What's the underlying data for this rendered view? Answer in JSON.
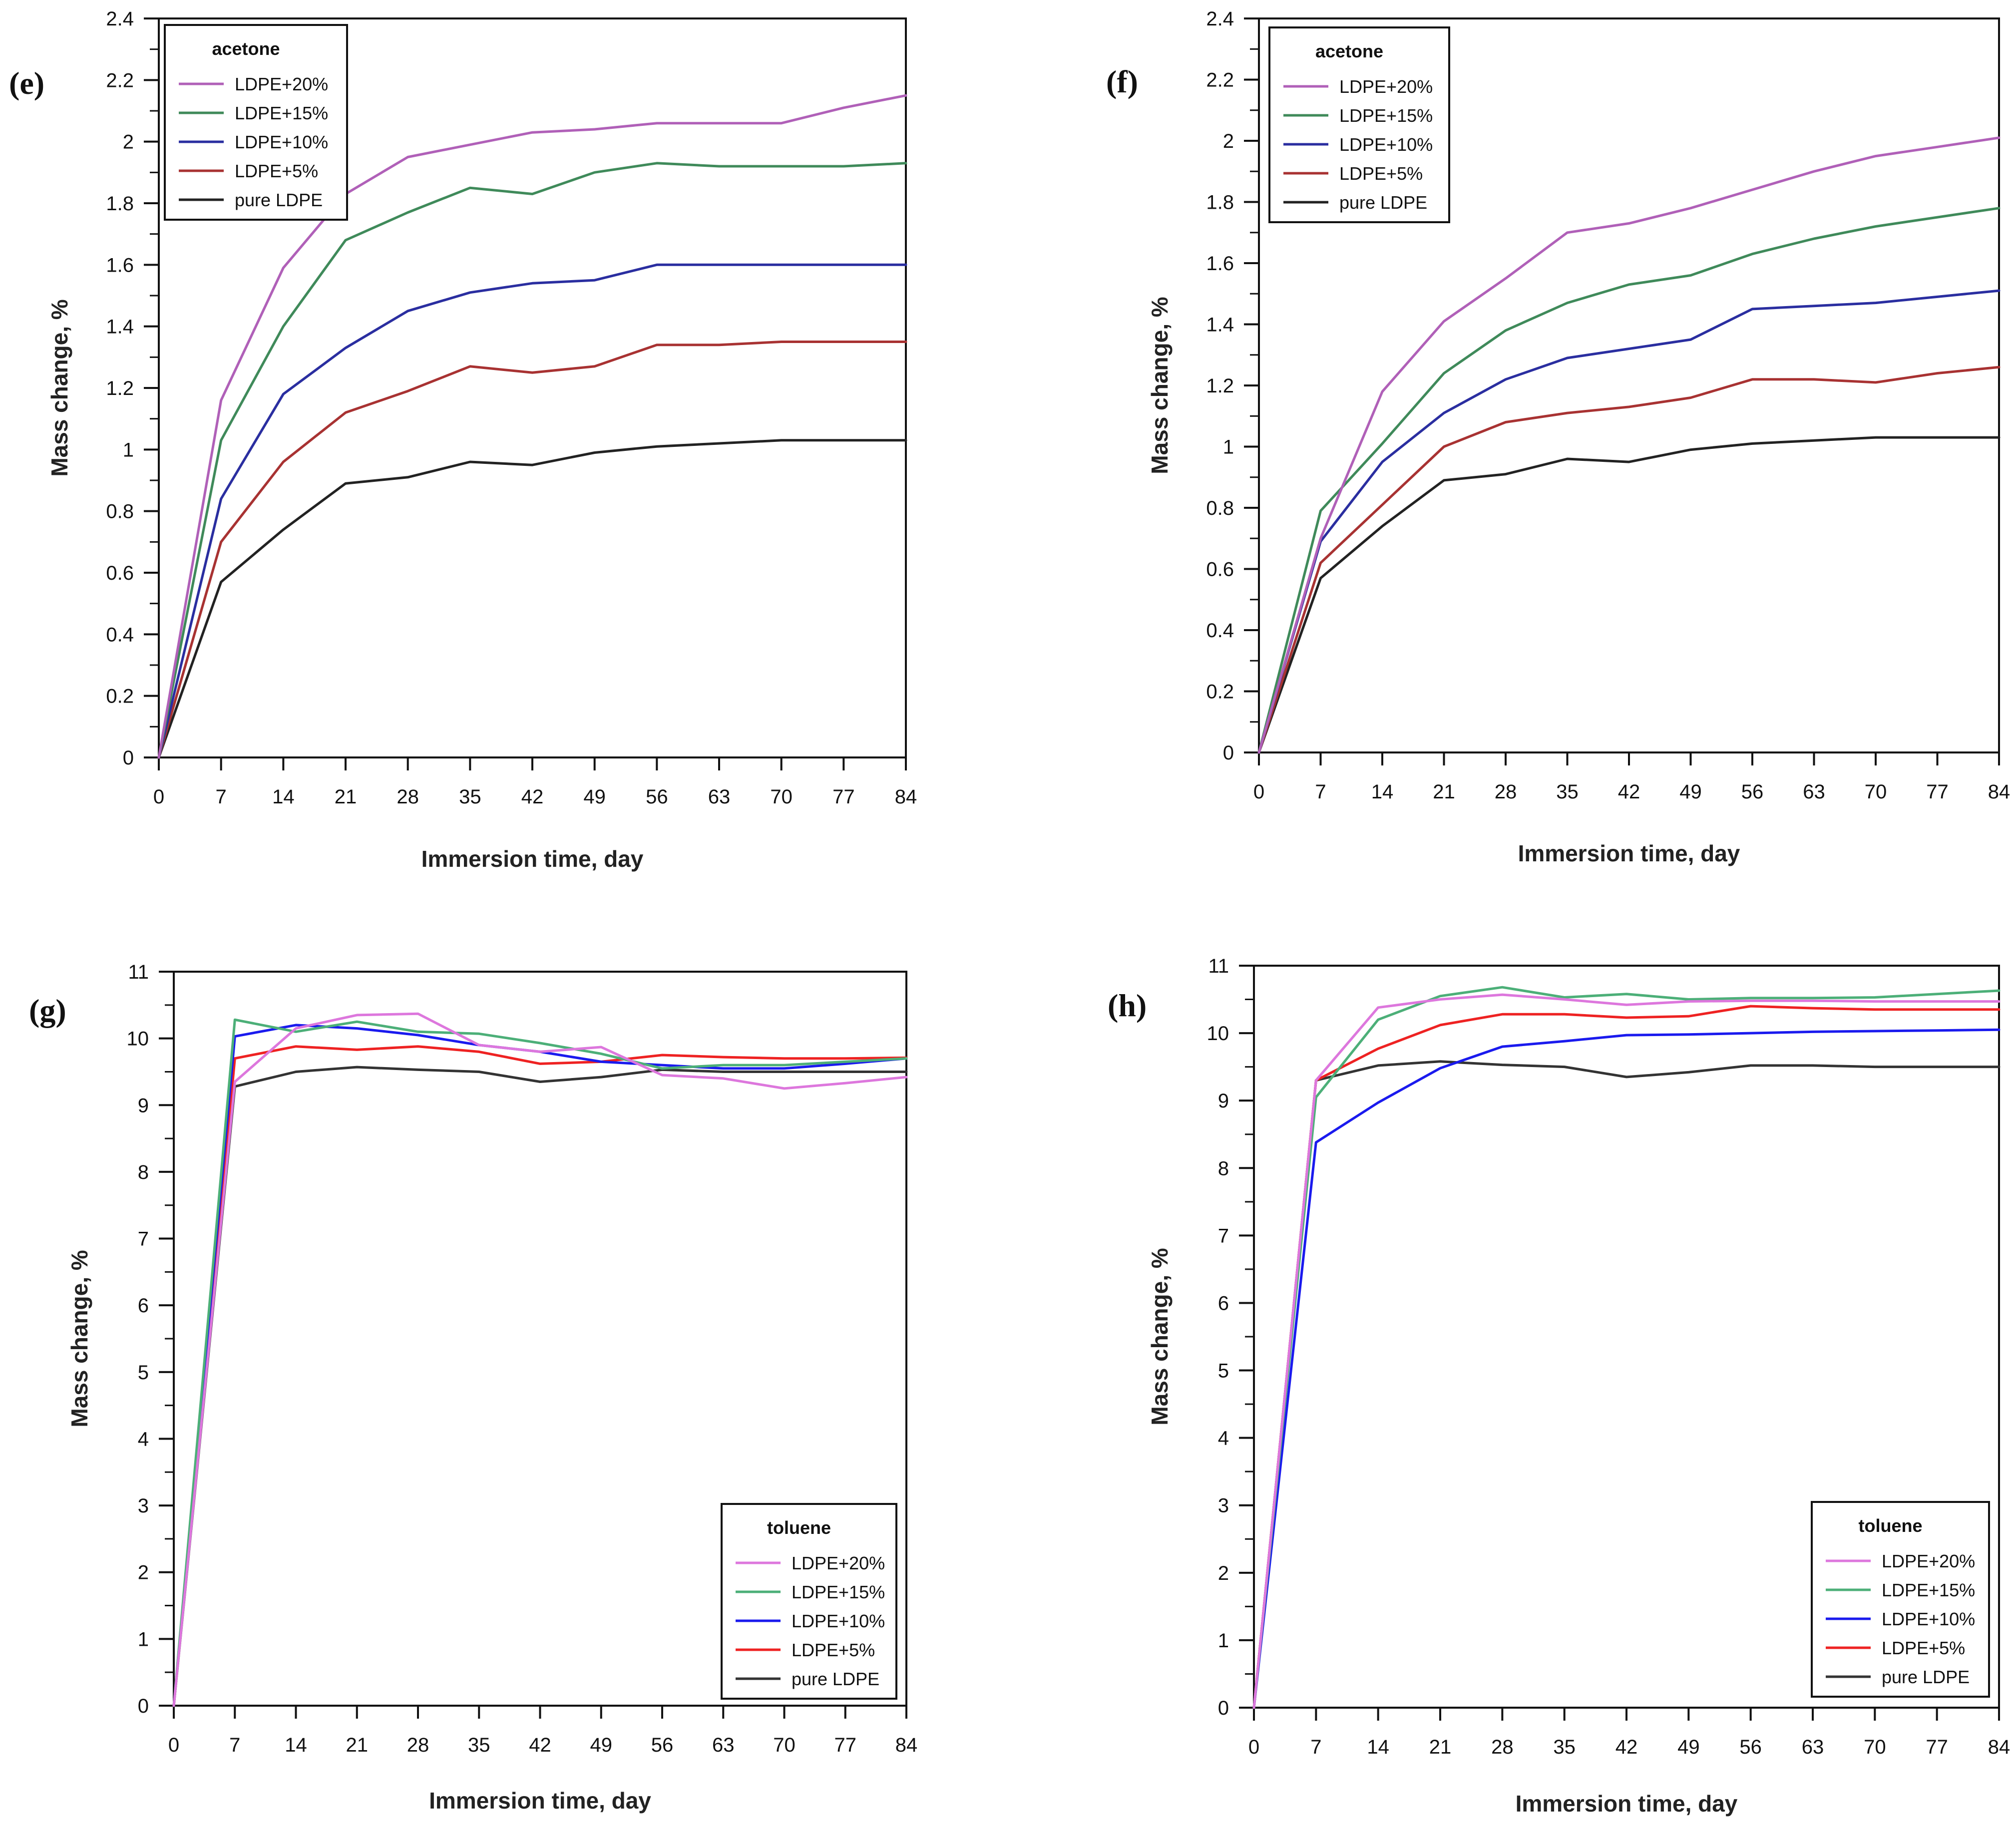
{
  "chart_data": [
    {
      "panel": "(e)",
      "type": "line",
      "xlabel": "Immersion time, day",
      "ylabel": "Mass change, %",
      "x": [
        0,
        7,
        14,
        21,
        28,
        35,
        42,
        49,
        56,
        63,
        70,
        77,
        84
      ],
      "x_ticks": [
        "0",
        "7",
        "14",
        "21",
        "28",
        "35",
        "42",
        "49",
        "56",
        "63",
        "70",
        "77",
        "84"
      ],
      "ylim": [
        0,
        2.4
      ],
      "y_ticks": [
        "0",
        "0.2",
        "0.4",
        "0.6",
        "0.8",
        "1",
        "1.2",
        "1.4",
        "1.6",
        "1.8",
        "2",
        "2.2",
        "2.4"
      ],
      "legend_title": "acetone",
      "legend_position": "top-left",
      "series": [
        {
          "name": "LDPE+20%",
          "color": "#b060b8",
          "values": [
            0,
            1.16,
            1.59,
            1.83,
            1.95,
            1.99,
            2.03,
            2.04,
            2.06,
            2.06,
            2.06,
            2.11,
            2.15
          ]
        },
        {
          "name": "LDPE+15%",
          "color": "#3f8a5a",
          "values": [
            0,
            1.03,
            1.4,
            1.68,
            1.77,
            1.85,
            1.83,
            1.9,
            1.93,
            1.92,
            1.92,
            1.92,
            1.93
          ]
        },
        {
          "name": "LDPE+10%",
          "color": "#2a2ea0",
          "values": [
            0,
            0.84,
            1.18,
            1.33,
            1.45,
            1.51,
            1.54,
            1.55,
            1.6,
            1.6,
            1.6,
            1.6,
            1.6
          ]
        },
        {
          "name": "LDPE+5%",
          "color": "#a83232",
          "values": [
            0,
            0.7,
            0.96,
            1.12,
            1.19,
            1.27,
            1.25,
            1.27,
            1.34,
            1.34,
            1.35,
            1.35,
            1.35
          ]
        },
        {
          "name": "pure LDPE",
          "color": "#222222",
          "values": [
            0,
            0.57,
            0.74,
            0.89,
            0.91,
            0.96,
            0.95,
            0.99,
            1.01,
            1.02,
            1.03,
            1.03,
            1.03
          ]
        }
      ]
    },
    {
      "panel": "(f)",
      "type": "line",
      "xlabel": "Immersion time, day",
      "ylabel": "Mass change, %",
      "x": [
        0,
        7,
        14,
        21,
        28,
        35,
        42,
        49,
        56,
        63,
        70,
        77,
        84
      ],
      "x_ticks": [
        "0",
        "7",
        "14",
        "21",
        "28",
        "35",
        "42",
        "49",
        "56",
        "63",
        "70",
        "77",
        "84"
      ],
      "ylim": [
        0,
        2.4
      ],
      "y_ticks": [
        "0",
        "0.2",
        "0.4",
        "0.6",
        "0.8",
        "1",
        "1.2",
        "1.4",
        "1.6",
        "1.8",
        "2",
        "2.2",
        "2.4"
      ],
      "legend_title": "acetone",
      "legend_position": "top-left",
      "series": [
        {
          "name": "LDPE+20%",
          "color": "#b060b8",
          "values": [
            0,
            0.7,
            1.18,
            1.41,
            1.55,
            1.7,
            1.73,
            1.78,
            1.84,
            1.9,
            1.95,
            1.98,
            2.01
          ]
        },
        {
          "name": "LDPE+15%",
          "color": "#3f8a5a",
          "values": [
            0,
            0.79,
            1.01,
            1.24,
            1.38,
            1.47,
            1.53,
            1.56,
            1.63,
            1.68,
            1.72,
            1.75,
            1.78
          ]
        },
        {
          "name": "LDPE+10%",
          "color": "#2a2ea0",
          "values": [
            0,
            0.69,
            0.95,
            1.11,
            1.22,
            1.29,
            1.32,
            1.35,
            1.45,
            1.46,
            1.47,
            1.49,
            1.51
          ]
        },
        {
          "name": "LDPE+5%",
          "color": "#a83232",
          "values": [
            0,
            0.62,
            0.81,
            1.0,
            1.08,
            1.11,
            1.13,
            1.16,
            1.22,
            1.22,
            1.21,
            1.24,
            1.26
          ]
        },
        {
          "name": "pure LDPE",
          "color": "#222222",
          "values": [
            0,
            0.57,
            0.74,
            0.89,
            0.91,
            0.96,
            0.95,
            0.99,
            1.01,
            1.02,
            1.03,
            1.03,
            1.03
          ]
        }
      ]
    },
    {
      "panel": "(g)",
      "type": "line",
      "xlabel": "Immersion time, day",
      "ylabel": "Mass change, %",
      "x": [
        0,
        7,
        14,
        21,
        28,
        35,
        42,
        49,
        56,
        63,
        70,
        77,
        84
      ],
      "x_ticks": [
        "0",
        "7",
        "14",
        "21",
        "28",
        "35",
        "42",
        "49",
        "56",
        "63",
        "70",
        "77",
        "84"
      ],
      "ylim": [
        0,
        11
      ],
      "y_ticks": [
        "0",
        "1",
        "2",
        "3",
        "4",
        "5",
        "6",
        "7",
        "8",
        "9",
        "10",
        "11"
      ],
      "legend_title": "toluene",
      "legend_position": "bottom-right",
      "series": [
        {
          "name": "LDPE+20%",
          "color": "#dd77dd",
          "values": [
            0,
            9.35,
            10.15,
            10.35,
            10.37,
            9.9,
            9.8,
            9.87,
            9.45,
            9.4,
            9.25,
            9.33,
            9.42
          ]
        },
        {
          "name": "LDPE+15%",
          "color": "#4caf78",
          "values": [
            0,
            10.28,
            10.1,
            10.25,
            10.1,
            10.07,
            9.93,
            9.77,
            9.55,
            9.6,
            9.6,
            9.65,
            9.7
          ]
        },
        {
          "name": "LDPE+10%",
          "color": "#1a1aee",
          "values": [
            0,
            10.03,
            10.2,
            10.15,
            10.05,
            9.9,
            9.8,
            9.65,
            9.6,
            9.55,
            9.55,
            9.62,
            9.7
          ]
        },
        {
          "name": "LDPE+5%",
          "color": "#ee2222",
          "values": [
            0,
            9.7,
            9.88,
            9.83,
            9.88,
            9.8,
            9.62,
            9.65,
            9.75,
            9.72,
            9.7,
            9.7,
            9.71
          ]
        },
        {
          "name": "pure LDPE",
          "color": "#333333",
          "values": [
            0,
            9.28,
            9.5,
            9.57,
            9.53,
            9.5,
            9.35,
            9.42,
            9.53,
            9.5,
            9.5,
            9.5,
            9.5
          ]
        }
      ]
    },
    {
      "panel": "(h)",
      "type": "line",
      "xlabel": "Immersion time, day",
      "ylabel": "Mass change, %",
      "x": [
        0,
        7,
        14,
        21,
        28,
        35,
        42,
        49,
        56,
        63,
        70,
        77,
        84
      ],
      "x_ticks": [
        "0",
        "7",
        "14",
        "21",
        "28",
        "35",
        "42",
        "49",
        "56",
        "63",
        "70",
        "77",
        "84"
      ],
      "ylim": [
        0,
        11
      ],
      "y_ticks": [
        "0",
        "1",
        "2",
        "3",
        "4",
        "5",
        "6",
        "7",
        "8",
        "9",
        "10",
        "11"
      ],
      "legend_title": "toluene",
      "legend_position": "bottom-right",
      "series": [
        {
          "name": "LDPE+20%",
          "color": "#dd77dd",
          "values": [
            0,
            9.3,
            10.38,
            10.5,
            10.57,
            10.5,
            10.42,
            10.47,
            10.48,
            10.48,
            10.47,
            10.47,
            10.47
          ]
        },
        {
          "name": "LDPE+15%",
          "color": "#4caf78",
          "values": [
            0,
            9.05,
            10.2,
            10.55,
            10.68,
            10.53,
            10.58,
            10.5,
            10.52,
            10.52,
            10.53,
            10.58,
            10.63
          ]
        },
        {
          "name": "LDPE+10%",
          "color": "#1a1aee",
          "values": [
            0,
            8.38,
            8.97,
            9.48,
            9.8,
            9.88,
            9.97,
            9.98,
            10.0,
            10.02,
            10.03,
            10.04,
            10.05
          ]
        },
        {
          "name": "LDPE+5%",
          "color": "#ee2222",
          "values": [
            0,
            9.3,
            9.77,
            10.12,
            10.28,
            10.28,
            10.23,
            10.25,
            10.4,
            10.37,
            10.35,
            10.35,
            10.35
          ]
        },
        {
          "name": "pure LDPE",
          "color": "#333333",
          "values": [
            0,
            9.3,
            9.52,
            9.58,
            9.53,
            9.5,
            9.35,
            9.42,
            9.52,
            9.52,
            9.5,
            9.5,
            9.5
          ]
        }
      ]
    }
  ]
}
